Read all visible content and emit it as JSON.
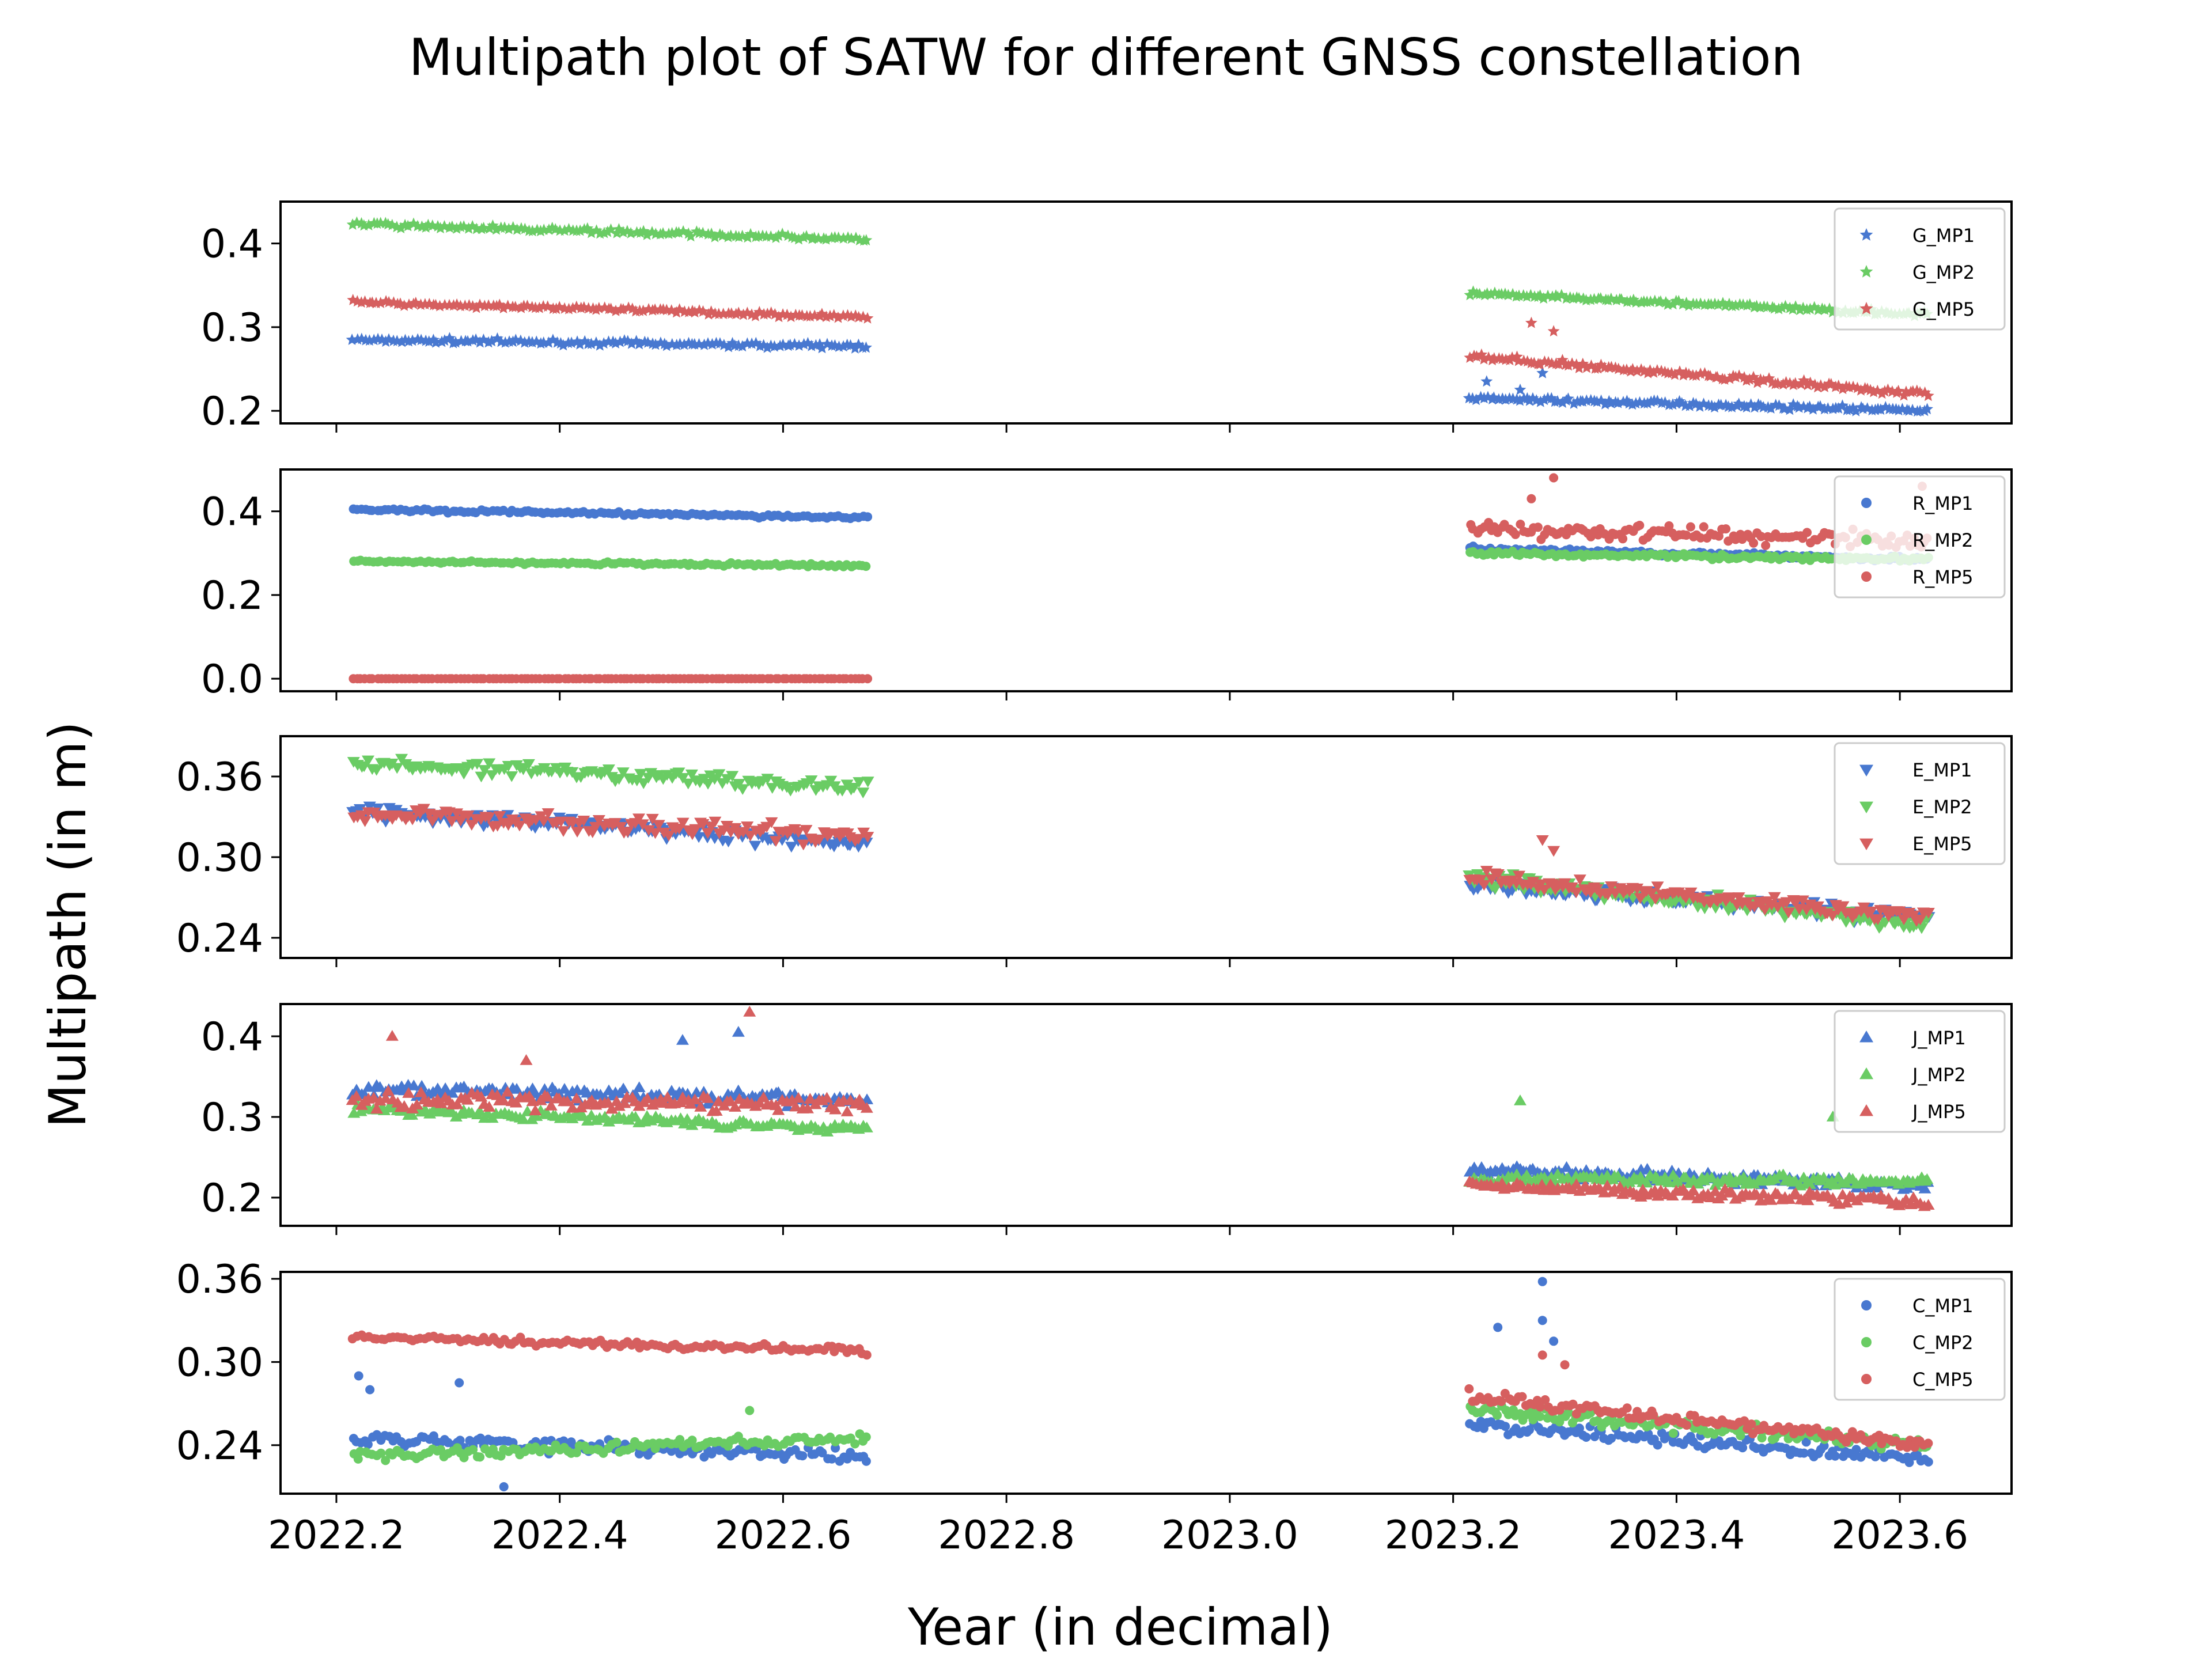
{
  "chart_data": {
    "type": "scatter",
    "title": "Multipath plot of SATW for different GNSS constellation",
    "xlabel": "Year (in decimal)",
    "ylabel": "Multipath (in m)",
    "xlim": [
      2022.15,
      2023.7
    ],
    "xticks": [
      2022.2,
      2022.4,
      2022.6,
      2022.8,
      2023.0,
      2023.2,
      2023.4,
      2023.6
    ],
    "xtick_labels": [
      "2022.2",
      "2022.4",
      "2022.6",
      "2022.8",
      "2023.0",
      "2023.2",
      "2023.4",
      "2023.6"
    ],
    "grid": false,
    "legend_placement": "top-right",
    "periods": [
      [
        2022.215,
        2022.675
      ],
      [
        2023.215,
        2023.625
      ]
    ],
    "colors": {
      "MP1": "#4878d0",
      "MP2": "#6acc64",
      "MP5": "#d65f5f"
    },
    "panels": [
      {
        "name": "G",
        "marker": "star",
        "ylim": [
          0.185,
          0.45
        ],
        "yticks": [
          0.2,
          0.3,
          0.4
        ],
        "ytick_labels": [
          "0.2",
          "0.3",
          "0.4"
        ],
        "series": [
          {
            "name": "G_MP1",
            "color": "#4878d0",
            "segments": [
              {
                "start": 0.285,
                "end": 0.277,
                "noise": 0.004
              },
              {
                "start": 0.215,
                "end": 0.2,
                "noise": 0.004,
                "spikes": [
                  [
                    2023.23,
                    0.235
                  ],
                  [
                    2023.28,
                    0.245
                  ],
                  [
                    2023.26,
                    0.225
                  ]
                ]
              }
            ]
          },
          {
            "name": "G_MP2",
            "color": "#6acc64",
            "segments": [
              {
                "start": 0.423,
                "end": 0.405,
                "noise": 0.004
              },
              {
                "start": 0.34,
                "end": 0.315,
                "noise": 0.004
              }
            ]
          },
          {
            "name": "G_MP5",
            "color": "#d65f5f",
            "segments": [
              {
                "start": 0.33,
                "end": 0.312,
                "noise": 0.004
              },
              {
                "start": 0.265,
                "end": 0.22,
                "noise": 0.005,
                "spikes": [
                  [
                    2023.27,
                    0.305
                  ],
                  [
                    2023.29,
                    0.295
                  ]
                ]
              }
            ]
          }
        ]
      },
      {
        "name": "R",
        "marker": "circle",
        "ylim": [
          -0.03,
          0.5
        ],
        "yticks": [
          0.0,
          0.2,
          0.4
        ],
        "ytick_labels": [
          "0.0",
          "0.2",
          "0.4"
        ],
        "series": [
          {
            "name": "R_MP1",
            "color": "#4878d0",
            "segments": [
              {
                "start": 0.405,
                "end": 0.385,
                "noise": 0.006
              },
              {
                "start": 0.31,
                "end": 0.285,
                "noise": 0.008
              }
            ]
          },
          {
            "name": "R_MP2",
            "color": "#6acc64",
            "segments": [
              {
                "start": 0.28,
                "end": 0.27,
                "noise": 0.005
              },
              {
                "start": 0.3,
                "end": 0.285,
                "noise": 0.008
              }
            ]
          },
          {
            "name": "R_MP5",
            "color": "#d65f5f",
            "segments": [
              {
                "start": 0.0,
                "end": 0.0,
                "noise": 0.0
              },
              {
                "start": 0.36,
                "end": 0.33,
                "noise": 0.03,
                "spikes": [
                  [
                    2023.29,
                    0.48
                  ],
                  [
                    2023.27,
                    0.43
                  ],
                  [
                    2023.62,
                    0.46
                  ]
                ]
              }
            ]
          }
        ]
      },
      {
        "name": "E",
        "marker": "triangle-down",
        "ylim": [
          0.225,
          0.39
        ],
        "yticks": [
          0.24,
          0.3,
          0.36
        ],
        "ytick_labels": [
          "0.24",
          "0.30",
          "0.36"
        ],
        "series": [
          {
            "name": "E_MP1",
            "color": "#4878d0",
            "segments": [
              {
                "start": 0.335,
                "end": 0.31,
                "noise": 0.008
              },
              {
                "start": 0.28,
                "end": 0.255,
                "noise": 0.008
              }
            ]
          },
          {
            "name": "E_MP2",
            "color": "#6acc64",
            "segments": [
              {
                "start": 0.37,
                "end": 0.352,
                "noise": 0.008
              },
              {
                "start": 0.285,
                "end": 0.25,
                "noise": 0.008
              }
            ]
          },
          {
            "name": "E_MP5",
            "color": "#d65f5f",
            "segments": [
              {
                "start": 0.333,
                "end": 0.315,
                "noise": 0.009
              },
              {
                "start": 0.285,
                "end": 0.255,
                "noise": 0.008,
                "spikes": [
                  [
                    2023.28,
                    0.313
                  ],
                  [
                    2023.29,
                    0.305
                  ]
                ]
              }
            ]
          }
        ]
      },
      {
        "name": "J",
        "marker": "triangle-up",
        "ylim": [
          0.165,
          0.44
        ],
        "yticks": [
          0.2,
          0.3,
          0.4
        ],
        "ytick_labels": [
          "0.2",
          "0.3",
          "0.4"
        ],
        "series": [
          {
            "name": "J_MP1",
            "color": "#4878d0",
            "segments": [
              {
                "start": 0.335,
                "end": 0.32,
                "noise": 0.012,
                "spikes": [
                  [
                    2022.51,
                    0.395
                  ],
                  [
                    2022.56,
                    0.405
                  ]
                ]
              },
              {
                "start": 0.235,
                "end": 0.215,
                "noise": 0.01
              }
            ]
          },
          {
            "name": "J_MP2",
            "color": "#6acc64",
            "segments": [
              {
                "start": 0.31,
                "end": 0.285,
                "noise": 0.008
              },
              {
                "start": 0.225,
                "end": 0.22,
                "noise": 0.01,
                "spikes": [
                  [
                    2023.26,
                    0.32
                  ],
                  [
                    2023.54,
                    0.3
                  ]
                ]
              }
            ]
          },
          {
            "name": "J_MP5",
            "color": "#d65f5f",
            "segments": [
              {
                "start": 0.32,
                "end": 0.315,
                "noise": 0.015,
                "spikes": [
                  [
                    2022.25,
                    0.4
                  ],
                  [
                    2022.57,
                    0.43
                  ],
                  [
                    2022.37,
                    0.37
                  ]
                ]
              },
              {
                "start": 0.215,
                "end": 0.195,
                "noise": 0.01
              }
            ]
          }
        ]
      },
      {
        "name": "C",
        "marker": "circle",
        "ylim": [
          0.205,
          0.365
        ],
        "yticks": [
          0.24,
          0.3,
          0.36
        ],
        "ytick_labels": [
          "0.24",
          "0.30",
          "0.36"
        ],
        "series": [
          {
            "name": "C_MP1",
            "color": "#4878d0",
            "segments": [
              {
                "start": 0.245,
                "end": 0.232,
                "noise": 0.007,
                "spikes": [
                  [
                    2022.22,
                    0.29
                  ],
                  [
                    2022.31,
                    0.285
                  ],
                  [
                    2022.35,
                    0.21
                  ],
                  [
                    2022.23,
                    0.28
                  ]
                ]
              },
              {
                "start": 0.255,
                "end": 0.23,
                "noise": 0.007,
                "spikes": [
                  [
                    2023.28,
                    0.358
                  ],
                  [
                    2023.24,
                    0.325
                  ],
                  [
                    2023.28,
                    0.33
                  ],
                  [
                    2023.29,
                    0.315
                  ]
                ]
              }
            ]
          },
          {
            "name": "C_MP2",
            "color": "#6acc64",
            "segments": [
              {
                "start": 0.232,
                "end": 0.245,
                "noise": 0.006,
                "spikes": [
                  [
                    2022.57,
                    0.265
                  ]
                ]
              },
              {
                "start": 0.265,
                "end": 0.24,
                "noise": 0.007
              }
            ]
          },
          {
            "name": "C_MP5",
            "color": "#d65f5f",
            "segments": [
              {
                "start": 0.318,
                "end": 0.308,
                "noise": 0.004
              },
              {
                "start": 0.275,
                "end": 0.24,
                "noise": 0.006,
                "spikes": [
                  [
                    2023.28,
                    0.305
                  ],
                  [
                    2023.3,
                    0.298
                  ]
                ]
              }
            ]
          }
        ]
      }
    ]
  }
}
